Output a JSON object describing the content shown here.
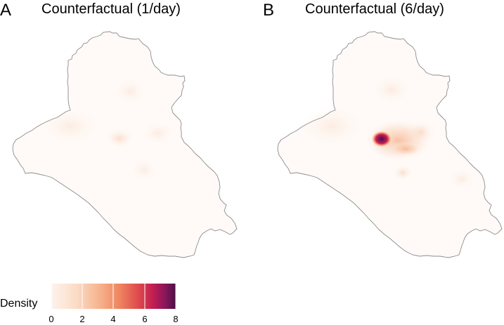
{
  "panels": [
    {
      "letter": "A",
      "title": "Counterfactual (1/day)"
    },
    {
      "letter": "B",
      "title": "Counterfactual (6/day)"
    }
  ],
  "legend": {
    "title": "Density",
    "ticks": [
      "0",
      "2",
      "4",
      "6",
      "8"
    ],
    "range": [
      0,
      8
    ],
    "colors": [
      "#fdf3ec",
      "#f9c6a6",
      "#f39a6e",
      "#e8614e",
      "#cb1f4f",
      "#8b1659",
      "#4b0f46"
    ]
  },
  "colors": {
    "border": "#8c8c8c",
    "background": "#ffffff"
  }
}
